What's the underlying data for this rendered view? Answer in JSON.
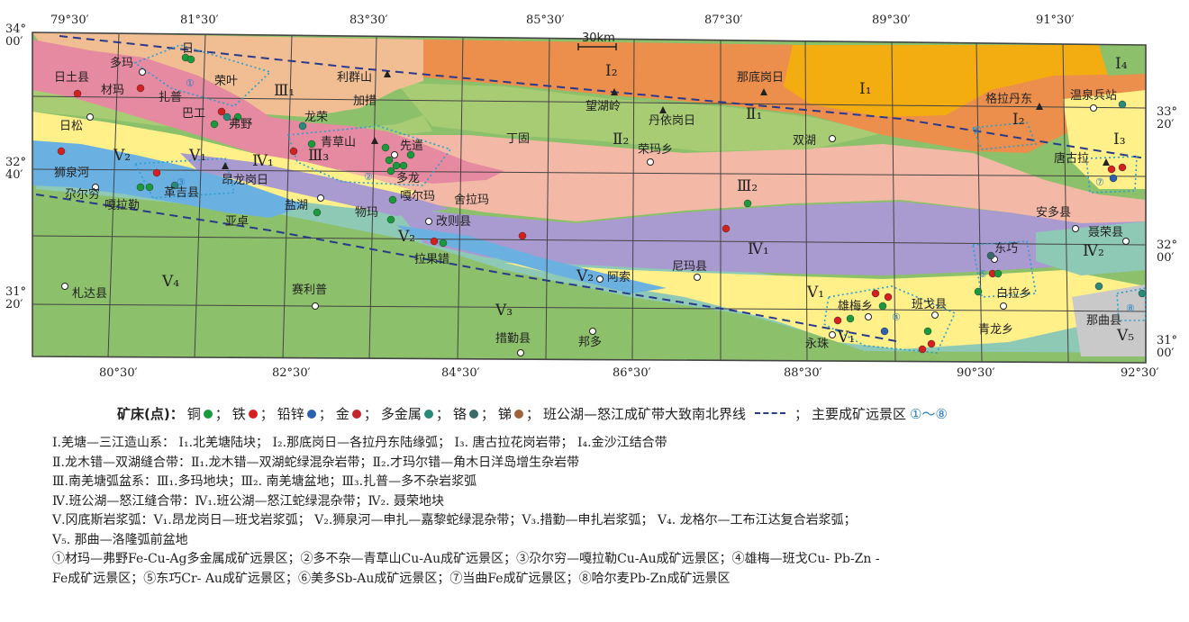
{
  "map": {
    "scale_bar": "30km",
    "top_lon_labels": [
      "79°30′",
      "81°30′",
      "83°30′",
      "85°30′",
      "87°30′",
      "89°30′",
      "91°30′"
    ],
    "bottom_lon_labels": [
      "80°30′",
      "82°30′",
      "84°30′",
      "86°30′",
      "88°30′",
      "90°30′",
      "92°30′"
    ],
    "left_lat_labels": [
      [
        "34°",
        "00′"
      ],
      [
        "32°",
        "40′"
      ],
      [
        "31°",
        "20′"
      ]
    ],
    "right_lat_labels": [
      [
        "33°",
        "20′"
      ],
      [
        "32°",
        "00′"
      ],
      [
        "31°",
        "00′"
      ]
    ],
    "units": {
      "I1": "Ⅰ₁",
      "I2a": "Ⅰ₂",
      "I2b": "Ⅰ₂",
      "I3": "Ⅰ₃",
      "I4": "Ⅰ₄",
      "II1": "Ⅱ₁",
      "II2": "Ⅱ₂",
      "III1": "Ⅲ₁",
      "III2": "Ⅲ₂",
      "III3": "Ⅲ₃",
      "IV1a": "Ⅳ₁",
      "IV1b": "Ⅳ₁",
      "IV2": "Ⅳ₂",
      "V1a": "Ⅴ₁",
      "V1b": "Ⅴ₁",
      "V1c": "Ⅴ₁",
      "V2a": "Ⅴ₂",
      "V2b": "Ⅴ₂",
      "V2c": "Ⅴ₂",
      "V3": "Ⅴ₃",
      "V4": "Ⅴ₄",
      "V5": "Ⅴ₅"
    },
    "places": {
      "rituo": "日土县",
      "duoma": "多玛",
      "caima": "材玛",
      "zapu": "扎普",
      "riwa": "日",
      "rongye": "荣叶",
      "bagong": "巴工",
      "fuye": "弗野",
      "risong": "日松",
      "shiquanhe": "狮泉河",
      "gaer": "尕尔穷",
      "galale": "嘎拉勒",
      "gejixian": "革吉县",
      "anglong": "昂龙岗日",
      "yazhuo": "亚卓",
      "yanhu": "盐湖",
      "wuyu": "物玛",
      "longrong": "龙荣",
      "qingcao": "青草山",
      "xiandao": "先遣",
      "duolong": "多龙",
      "gaerma": "嘎尔玛",
      "sheliama": "舍拉玛",
      "gaizexian": "改则县",
      "lameicuo": "拉果错",
      "lixianshan": "利群山",
      "jiacuo": "加措",
      "dingu": "丁固",
      "wanghu": "望湖岭",
      "danyi": "丹依岗日",
      "rongma": "荣玛乡",
      "nadigang": "那底岗日",
      "geladandong": "格拉丹东",
      "wenquan": "温泉兵站",
      "shuanghu": "双湖",
      "tanggu": "唐古拉",
      "anduo": "安多县",
      "nierong": "聂荣县",
      "dongqiao": "东巧",
      "bailaxiang": "白拉乡",
      "nimaxian": "尼玛县",
      "asuo": "阿索",
      "xiongmei": "雄梅乡",
      "bange": "班戈县",
      "qinglong": "青龙乡",
      "naqu": "那曲县",
      "yongzhu": "永珠",
      "cuoqin": "措勤县",
      "bangduo": "邦多",
      "zhada": "札达县",
      "saili": "赛利普"
    },
    "zones": [
      "①",
      "②",
      "③",
      "④",
      "⑤",
      "⑥",
      "⑦",
      "⑧"
    ]
  },
  "legend": {
    "lead": "矿床(点)：",
    "items": [
      {
        "label": "铜",
        "color": "#1a9a3a"
      },
      {
        "label": "铁",
        "color": "#d62020"
      },
      {
        "label": "铅锌",
        "color": "#2f5fb0"
      },
      {
        "label": "金",
        "color": "#c8222a"
      },
      {
        "label": "多金属",
        "color": "#2a8a7a"
      },
      {
        "label": "铬",
        "color": "#3a6a6a"
      },
      {
        "label": "锑",
        "color": "#a0623a"
      }
    ],
    "boundary": "班公湖—怒江成矿带大致南北界线",
    "prospect": "主要成矿远景区",
    "prospect_range": "①～⑧"
  },
  "notes": [
    "Ⅰ.羌塘—三江造山系： Ⅰ₁.北羌塘陆块； Ⅰ₂.那底岗日—各拉丹东陆缘弧； Ⅰ₃. 唐古拉花岗岩带； Ⅰ₄.金沙江结合带",
    "Ⅱ.龙木错—双湖缝合带：Ⅱ₁.龙木错—双湖蛇绿混杂岩带；Ⅱ₂.才玛尔错—角木日洋岛增生杂岩带",
    "Ⅲ.南羌塘弧盆系：Ⅲ₁.多玛地块；Ⅲ₂. 南羌塘盆地；Ⅲ₃.扎普—多不杂岩浆弧",
    "Ⅳ.班公湖—怒江缝合带：Ⅳ₁.班公湖—怒江蛇绿混杂带；Ⅳ₂. 聂荣地块",
    "Ⅴ.冈底斯岩浆弧：Ⅴ₁.昂龙岗日—班戈岩浆弧； Ⅴ₂.狮泉河—申扎—嘉黎蛇绿混杂带；Ⅴ₃.措勤—申扎岩浆弧； Ⅴ₄. 龙格尔—工布江达复合岩浆弧；",
    "Ⅴ₅. 那曲—洛隆弧前盆地",
    "①材玛—弗野Fe-Cu-Ag多金属成矿远景区；②多不杂—青草山Cu-Au成矿远景区；③尕尔穷—嘎拉勒Cu-Au成矿远景区；④雄梅—班戈Cu- Pb-Zn -",
    "Fe成矿远景区；⑤东巧Cr- Au成矿远景区；⑥美多Sb-Au成矿远景区；⑦当曲Fe成矿远景区；⑧哈尔麦Pb-Zn成矿远景区"
  ]
}
